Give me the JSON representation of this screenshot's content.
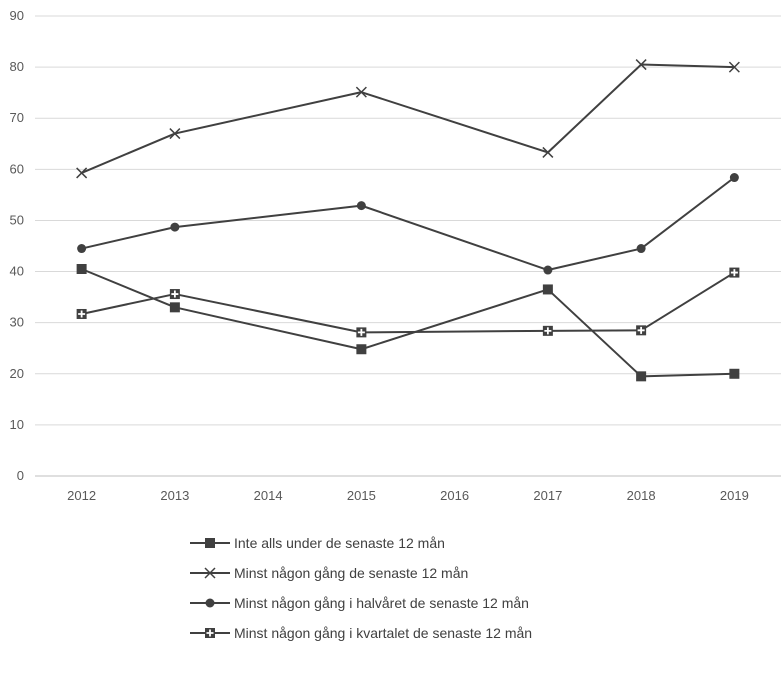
{
  "chart_data": {
    "type": "line",
    "x": [
      "2012",
      "2013",
      "2014",
      "2015",
      "2016",
      "2017",
      "2018",
      "2019"
    ],
    "ylim": [
      0,
      90
    ],
    "yticks": [
      "0",
      "10",
      "20",
      "30",
      "40",
      "50",
      "60",
      "70",
      "80",
      "90"
    ],
    "grid": true,
    "legend_position": "bottom",
    "series": [
      {
        "name": "Inte alls under de senaste 12 mån",
        "marker": "square",
        "points": [
          [
            "2012",
            40.5
          ],
          [
            "2013",
            33
          ],
          [
            "2015",
            24.8
          ],
          [
            "2017",
            36.5
          ],
          [
            "2018",
            19.5
          ],
          [
            "2019",
            20
          ]
        ]
      },
      {
        "name": "Minst någon gång de senaste 12 mån",
        "marker": "x",
        "points": [
          [
            "2012",
            59.3
          ],
          [
            "2013",
            67
          ],
          [
            "2015",
            75.1
          ],
          [
            "2017",
            63.3
          ],
          [
            "2018",
            80.5
          ],
          [
            "2019",
            80
          ]
        ]
      },
      {
        "name": "Minst någon gång i halvåret de senaste 12 mån",
        "marker": "circle",
        "points": [
          [
            "2012",
            44.5
          ],
          [
            "2013",
            48.7
          ],
          [
            "2015",
            52.9
          ],
          [
            "2017",
            40.3
          ],
          [
            "2018",
            44.5
          ],
          [
            "2019",
            58.4
          ]
        ]
      },
      {
        "name": "Minst någon gång i kvartalet de senaste 12 mån",
        "marker": "square-plus",
        "points": [
          [
            "2012",
            31.7
          ],
          [
            "2013",
            35.6
          ],
          [
            "2015",
            28.1
          ],
          [
            "2017",
            28.4
          ],
          [
            "2018",
            28.5
          ],
          [
            "2019",
            39.8
          ]
        ]
      }
    ],
    "colors": {
      "line": "#404040",
      "grid": "#d9d9d9",
      "axis": "#bfbfbf",
      "text": "#595959"
    }
  }
}
